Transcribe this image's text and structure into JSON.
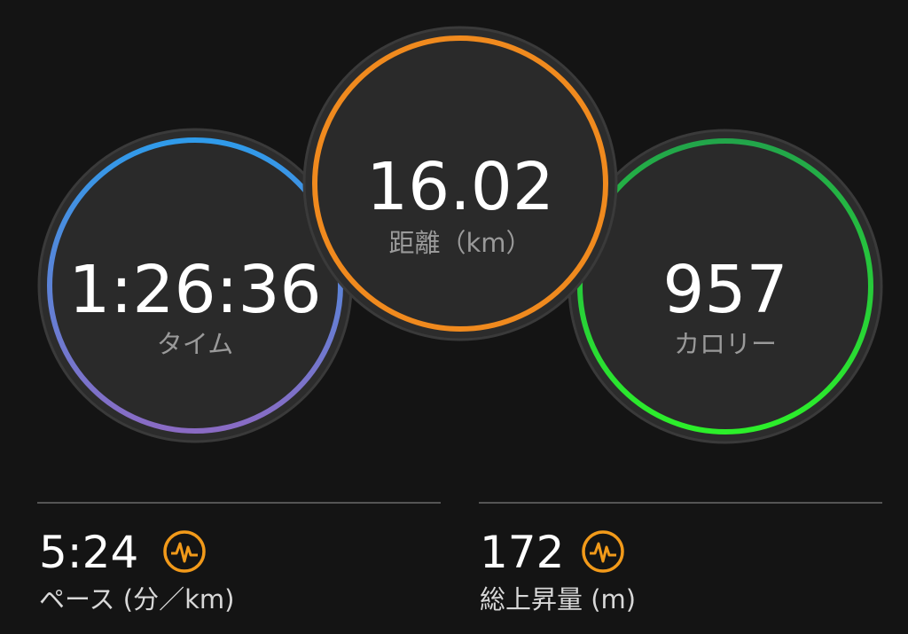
{
  "stats": [
    {
      "value": "1:26:36",
      "label": "タイム"
    },
    {
      "value": "16.02",
      "label": "距離（km）"
    },
    {
      "value": "957",
      "label": "カロリー"
    }
  ],
  "details": [
    {
      "value": "5:24",
      "label": "ペース (分／km)"
    },
    {
      "value": "172",
      "label": "総上昇量 (m)"
    }
  ]
}
